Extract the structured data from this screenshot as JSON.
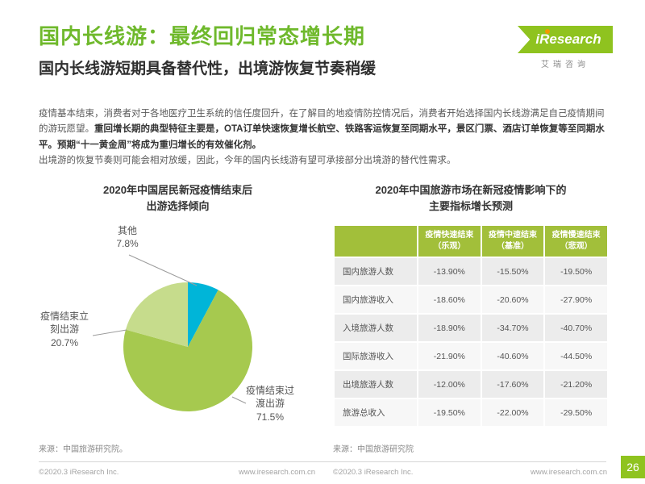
{
  "header": {
    "title": "国内长线游：最终回归常态增长期",
    "subtitle": "国内长线游短期具备替代性，出境游恢复节奏稍缓",
    "logo": {
      "brand": "iResearch",
      "brand_cn": "艾瑞咨询"
    }
  },
  "body": {
    "p1_normal": "疫情基本结束，消费者对于各地医疗卫生系统的信任度回升，在了解目的地疫情防控情况后，消费者开始选择国内长线游满足自己疫情期间的游玩愿望。",
    "p1_bold": "重回增长期的典型特征主要是，OTA订单快速恢复增长航空、铁路客运恢复至同期水平，景区门票、酒店订单恢复等至同期水平。预期“十一黄金周”将成为重归增长的有效催化剂。",
    "p2": "出境游的恢复节奏则可能会相对放缓，因此，今年的国内长线游有望可承接部分出境游的替代性需求。"
  },
  "chart_data": [
    {
      "type": "pie",
      "title": "2020年中国居民新冠疫情结束后出游选择倾向",
      "title_lines": [
        "2020年中国居民新冠疫情结束后",
        "出游选择倾向"
      ],
      "slices": [
        {
          "label": "其他",
          "value": 7.8,
          "pct": "7.8%",
          "color": "#00b5d8"
        },
        {
          "label": "疫情结束过渡出游",
          "value": 71.5,
          "pct": "71.5%",
          "color": "#a6c94f"
        },
        {
          "label": "疫情结束立刻出游",
          "value": 20.7,
          "pct": "20.7%",
          "color": "#c6dc8c"
        }
      ],
      "legend_position": "outside-leader-lines",
      "source": "来源：中国旅游研究院。"
    },
    {
      "type": "table",
      "title": "2020年中国旅游市场在新冠疫情影响下的主要指标增长预测",
      "title_lines": [
        "2020年中国旅游市场在新冠疫情影响下的",
        "主要指标增长预测"
      ],
      "columns": [
        "疫情快速结束\n（乐观）",
        "疫情中速结束\n（基准）",
        "疫情慢速结束\n（悲观）"
      ],
      "rows": [
        {
          "label": "国内旅游人数",
          "values": [
            "-13.90%",
            "-15.50%",
            "-19.50%"
          ]
        },
        {
          "label": "国内旅游收入",
          "values": [
            "-18.60%",
            "-20.60%",
            "-27.90%"
          ]
        },
        {
          "label": "入境旅游人数",
          "values": [
            "-18.90%",
            "-34.70%",
            "-40.70%"
          ]
        },
        {
          "label": "国际旅游收入",
          "values": [
            "-21.90%",
            "-40.60%",
            "-44.50%"
          ]
        },
        {
          "label": "出境旅游人数",
          "values": [
            "-12.00%",
            "-17.60%",
            "-21.20%"
          ]
        },
        {
          "label": "旅游总收入",
          "values": [
            "-19.50%",
            "-22.00%",
            "-29.50%"
          ]
        }
      ],
      "source": "来源：中国旅游研究院"
    }
  ],
  "colors": {
    "title_green": "#6fb92c",
    "logo_green": "#8fc31f",
    "table_header_green": "#a2bf3a"
  },
  "footer": {
    "copyright": "©2020.3 iResearch Inc.",
    "website": "www.iresearch.com.cn",
    "page_number": "26"
  }
}
